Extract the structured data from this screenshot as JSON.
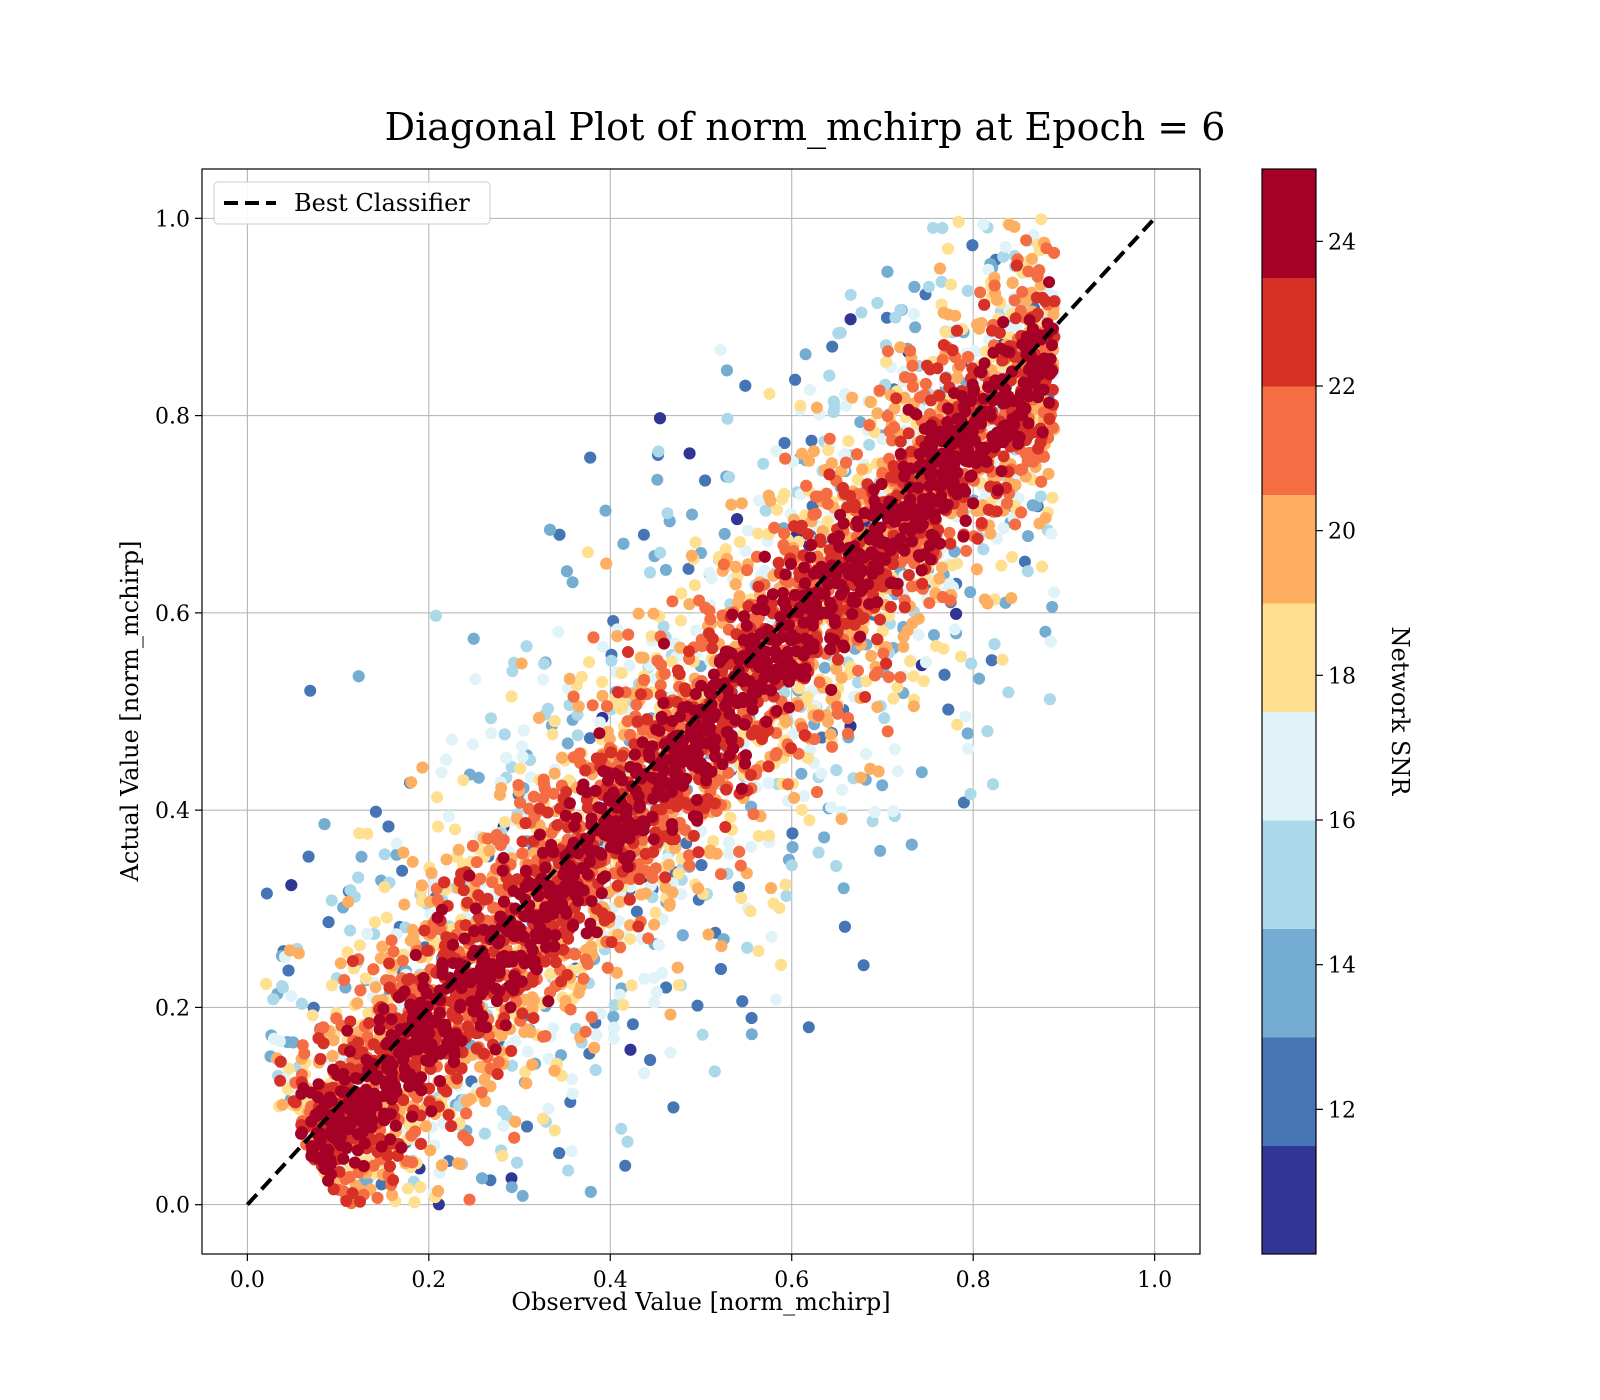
{
  "chart_data": {
    "type": "scatter",
    "title": "Diagonal Plot of norm_mchirp at Epoch = 6",
    "xlabel": "Observed Value [norm_mchirp]",
    "ylabel": "Actual Value [norm_mchirp]",
    "xlim": [
      -0.05,
      1.05
    ],
    "ylim": [
      -0.05,
      1.05
    ],
    "xticks": [
      "0.0",
      "0.2",
      "0.4",
      "0.6",
      "0.8",
      "1.0"
    ],
    "yticks": [
      "0.0",
      "0.2",
      "0.4",
      "0.6",
      "0.8",
      "1.0"
    ],
    "grid": true,
    "legend": {
      "placement": "upper-left",
      "entries": [
        "Best Classifier"
      ]
    },
    "reference_line": {
      "name": "Best Classifier",
      "style": "dashed",
      "color": "#000000",
      "x": [
        0,
        1
      ],
      "y": [
        0,
        1
      ]
    },
    "colorbar": {
      "label": "Network SNR",
      "range": [
        10,
        25
      ],
      "ticks": [
        "12",
        "14",
        "16",
        "18",
        "20",
        "22",
        "24"
      ],
      "tick_values": [
        12,
        14,
        16,
        18,
        20,
        22,
        24
      ],
      "colors": [
        "#313695",
        "#4575b4",
        "#74add1",
        "#abd9e9",
        "#e0f3f8",
        "#fee090",
        "#fdae61",
        "#f46d43",
        "#d73027",
        "#a50026"
      ]
    },
    "scatter_model": {
      "x_range": [
        0.02,
        0.89
      ],
      "y_range": [
        0.0,
        1.0
      ],
      "description": "points cluster around y = x; high SNR (dark red) tight along diagonal, low SNR (blue) spread further",
      "point_count_estimate": 9000
    }
  }
}
